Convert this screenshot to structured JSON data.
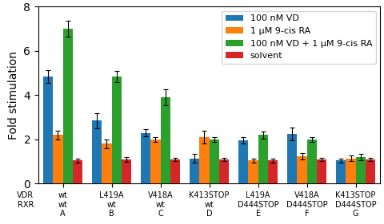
{
  "chart_data": {
    "type": "bar",
    "categories": [
      "wt\nwt\nA",
      "L419A\nwt\nB",
      "V418A\nwt\nC",
      "K413STOP\nwt\nD",
      "L419A\nD444STOP\nE",
      "V418A\nD444STOP\nF",
      "K413STOP\nD444STOP\nG"
    ],
    "ylabel": "Fold stimulation",
    "ylim": [
      0,
      8
    ],
    "yticks": [
      0,
      2,
      4,
      6,
      8
    ],
    "legend": "upper right",
    "annotations": [
      "VDR",
      "RXR"
    ],
    "series": [
      {
        "name": "100 nM VD",
        "values": [
          4.85,
          2.85,
          2.3,
          1.15,
          1.95,
          2.25,
          1.05
        ],
        "errors": [
          0.3,
          0.35,
          0.15,
          0.2,
          0.15,
          0.3,
          0.1
        ]
      },
      {
        "name": "1 μM 9-cis RA",
        "values": [
          2.2,
          1.8,
          2.0,
          2.1,
          1.05,
          1.25,
          1.15
        ],
        "errors": [
          0.2,
          0.2,
          0.1,
          0.3,
          0.1,
          0.15,
          0.12
        ]
      },
      {
        "name": "100 nM VD + 1 μM 9-cis RA",
        "values": [
          7.0,
          4.85,
          3.9,
          2.0,
          2.2,
          2.0,
          1.2
        ],
        "errors": [
          0.35,
          0.25,
          0.35,
          0.12,
          0.15,
          0.12,
          0.15
        ]
      },
      {
        "name": "solvent",
        "values": [
          1.05,
          1.1,
          1.1,
          1.1,
          1.05,
          1.1,
          1.1
        ],
        "errors": [
          0.08,
          0.1,
          0.08,
          0.08,
          0.08,
          0.08,
          0.08
        ]
      }
    ]
  }
}
